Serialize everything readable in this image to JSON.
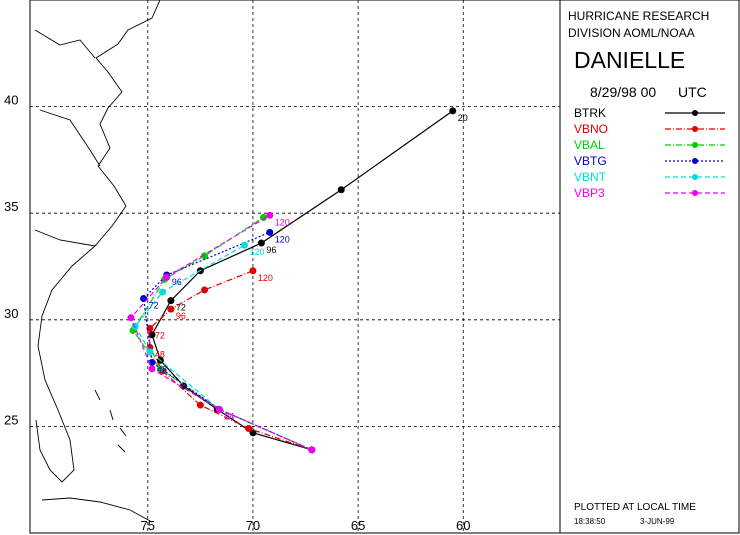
{
  "chart_data": {
    "type": "track-map",
    "header": [
      "HURRICANE RESEARCH",
      "DIVISION AOML/NOAA"
    ],
    "title": "DANIELLE",
    "date": "8/29/98 00",
    "timezone": "UTC",
    "footer": "PLOTTED AT LOCAL TIME",
    "plot_time": "18:38:50",
    "plot_date": "3-JUN-99",
    "xlim": [
      80.6,
      55.4
    ],
    "ylim": [
      20,
      45
    ],
    "xticks": [
      75,
      70,
      65,
      60
    ],
    "yticks": [
      25,
      30,
      35,
      40
    ],
    "grid": true,
    "series": [
      {
        "name": "BTRK",
        "color": "#000000",
        "linestyle": "solid",
        "x": [
          67.2,
          70.0,
          71.7,
          73.3,
          74.4,
          74.8,
          73.9,
          72.5,
          69.6,
          65.8,
          60.5
        ],
        "values": [
          23.9,
          24.7,
          25.8,
          26.9,
          28.1,
          29.3,
          30.9,
          32.3,
          33.6,
          36.1,
          39.8
        ],
        "labels": [
          null,
          null,
          null,
          null,
          null,
          null,
          72,
          null,
          96,
          null,
          20
        ]
      },
      {
        "name": "VBNO",
        "color": "#e00000",
        "linestyle": "dash-dot",
        "x": [
          67.2,
          70.2,
          72.5,
          74.3,
          74.9,
          74.9,
          73.9,
          72.3,
          70.0
        ],
        "values": [
          23.9,
          24.9,
          26.0,
          27.6,
          28.7,
          29.6,
          30.5,
          31.4,
          32.3
        ],
        "labels": [
          null,
          null,
          null,
          null,
          48,
          72,
          96,
          null,
          120
        ]
      },
      {
        "name": "VBAL",
        "color": "#00cc00",
        "linestyle": "dash-dot",
        "x": [
          67.2,
          71.6,
          74.4,
          75.7,
          74.2,
          72.3,
          69.5
        ],
        "values": [
          23.9,
          25.8,
          27.7,
          29.5,
          31.9,
          33.0,
          34.8
        ],
        "labels": [
          null,
          null,
          null,
          null,
          null,
          null,
          null
        ]
      },
      {
        "name": "VBTG",
        "color": "#0000cc",
        "linestyle": "dot",
        "x": [
          67.2,
          71.6,
          74.8,
          75.2,
          74.1,
          69.2
        ],
        "values": [
          23.9,
          25.8,
          28.0,
          31.0,
          32.1,
          34.1
        ],
        "labels": [
          null,
          24,
          48,
          72,
          96,
          120
        ]
      },
      {
        "name": "VBNT",
        "color": "#00dddd",
        "linestyle": "dash",
        "x": [
          67.2,
          71.6,
          74.9,
          75.6,
          74.3,
          70.4
        ],
        "values": [
          23.9,
          25.8,
          28.5,
          29.7,
          31.3,
          33.5
        ],
        "labels": [
          null,
          null,
          null,
          null,
          null,
          120
        ]
      },
      {
        "name": "VBP3",
        "color": "#ee00ee",
        "linestyle": "dash",
        "x": [
          67.2,
          71.6,
          74.8,
          75.8,
          74.1,
          69.2
        ],
        "values": [
          23.9,
          25.8,
          27.7,
          30.1,
          32.0,
          34.9
        ],
        "labels": [
          null,
          24,
          null,
          null,
          null,
          120
        ]
      }
    ]
  }
}
